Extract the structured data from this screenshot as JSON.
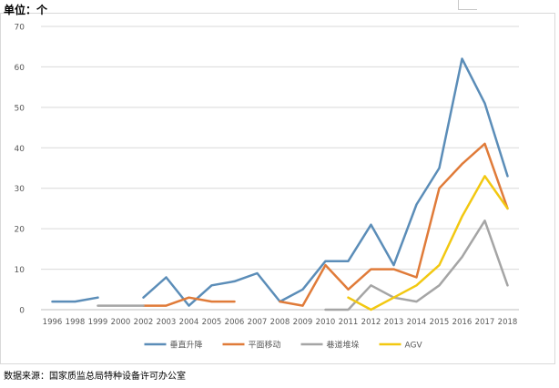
{
  "header": {
    "unit_label": "单位：个"
  },
  "footer": {
    "source_label": "数据来源：国家质监总局特种设备许可办公室"
  },
  "chart_data": {
    "type": "line",
    "title": "",
    "xlabel": "",
    "ylabel": "",
    "ylim": [
      0,
      70
    ],
    "yticks": [
      0,
      10,
      20,
      30,
      40,
      50,
      60,
      70
    ],
    "grid": true,
    "legend_position": "bottom",
    "x": [
      "1996",
      "1998",
      "1999",
      "2000",
      "2002",
      "2003",
      "2004",
      "2005",
      "2006",
      "2007",
      "2008",
      "2009",
      "2010",
      "2011",
      "2012",
      "2013",
      "2014",
      "2015",
      "2016",
      "2017",
      "2018"
    ],
    "series": [
      {
        "name": "垂直升降",
        "color": "#5b8db8",
        "values": [
          2,
          2,
          3,
          null,
          3,
          8,
          1,
          6,
          7,
          9,
          2,
          5,
          12,
          12,
          21,
          11,
          26,
          35,
          62,
          51,
          33
        ]
      },
      {
        "name": "平面移动",
        "color": "#e07b39",
        "values": [
          null,
          null,
          null,
          null,
          1,
          1,
          3,
          2,
          2,
          null,
          2,
          1,
          11,
          5,
          10,
          10,
          8,
          30,
          36,
          41,
          25
        ]
      },
      {
        "name": "巷道堆垛",
        "color": "#a5a5a5",
        "values": [
          null,
          null,
          1,
          1,
          1,
          null,
          null,
          null,
          null,
          null,
          null,
          null,
          0,
          0,
          6,
          3,
          2,
          6,
          13,
          22,
          6
        ]
      },
      {
        "name": "AGV",
        "color": "#f2c811",
        "values": [
          null,
          null,
          null,
          null,
          null,
          null,
          null,
          null,
          null,
          null,
          null,
          null,
          null,
          3,
          0,
          3,
          6,
          11,
          23,
          33,
          25
        ]
      }
    ]
  }
}
